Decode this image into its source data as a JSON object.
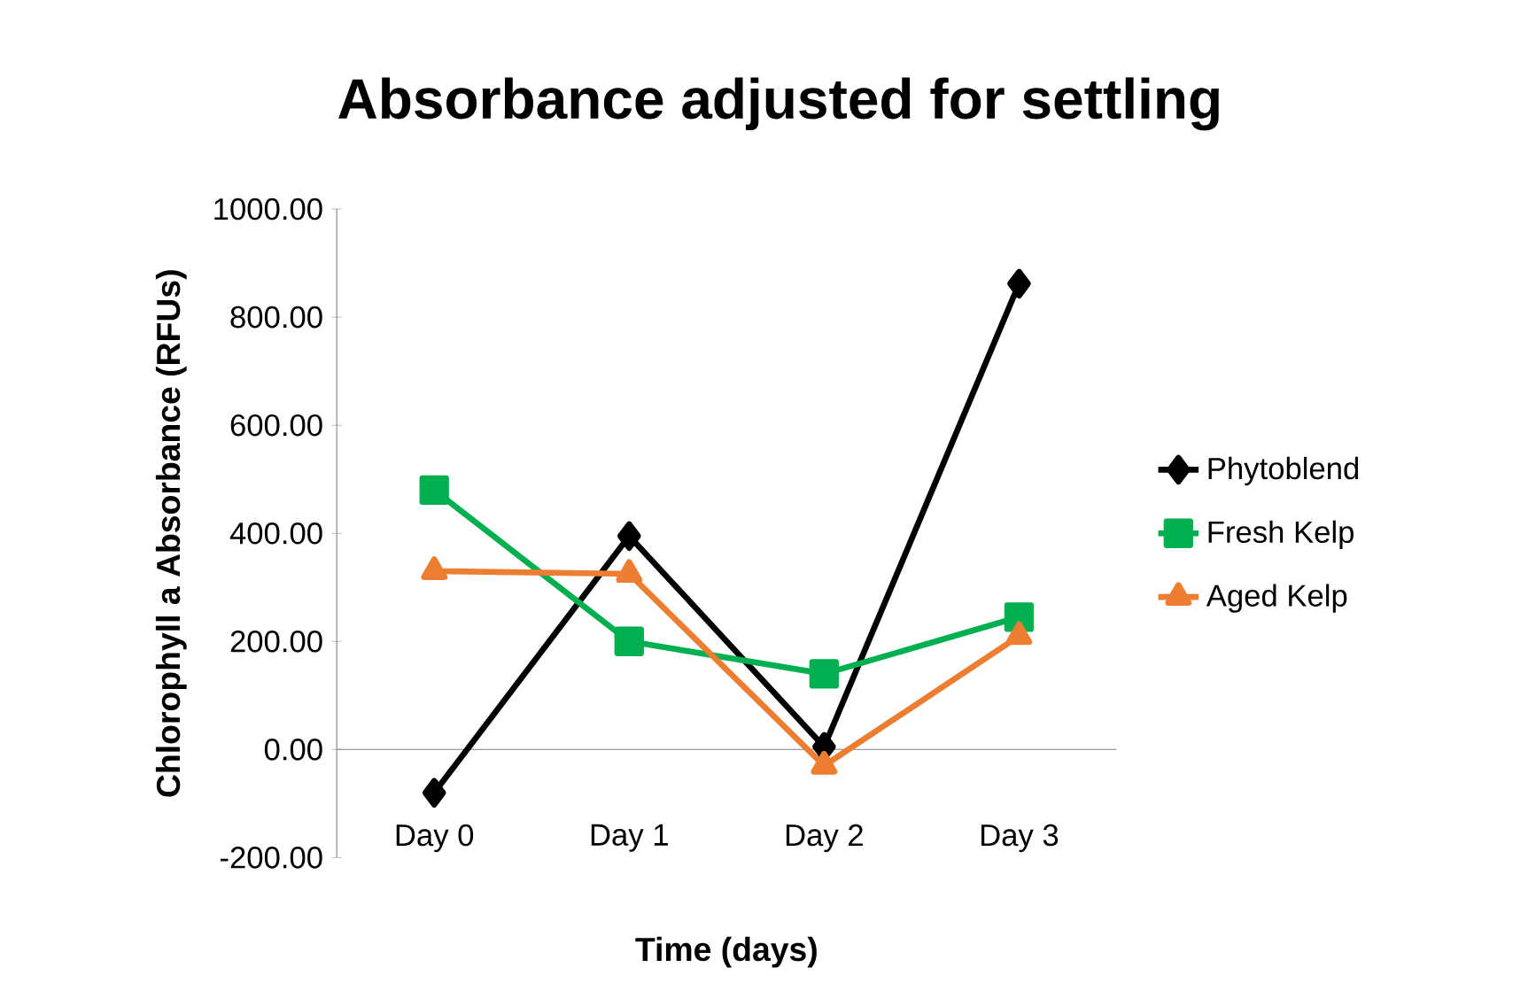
{
  "chart_data": {
    "type": "line",
    "title": "Absorbance adjusted for settling",
    "xlabel": "Time (days)",
    "ylabel": "Chlorophyll a Absorbance (RFUs)",
    "categories": [
      "Day 0",
      "Day 1",
      "Day 2",
      "Day 3"
    ],
    "series": [
      {
        "name": "Phytoblend",
        "color": "#000000",
        "marker": "diamond",
        "values": [
          -80,
          395,
          5,
          862
        ]
      },
      {
        "name": "Fresh Kelp",
        "color": "#00b050",
        "marker": "square",
        "values": [
          480,
          200,
          140,
          245
        ]
      },
      {
        "name": "Aged Kelp",
        "color": "#ed7d31",
        "marker": "triangle",
        "values": [
          330,
          325,
          -30,
          210
        ]
      }
    ],
    "ylim": [
      -200,
      1000
    ],
    "yticks": [
      {
        "value": -200,
        "label": "-200.00"
      },
      {
        "value": 0,
        "label": "0.00"
      },
      {
        "value": 200,
        "label": "200.00"
      },
      {
        "value": 400,
        "label": "400.00"
      },
      {
        "value": 600,
        "label": "600.00"
      },
      {
        "value": 800,
        "label": "800.00"
      },
      {
        "value": 1000,
        "label": "1000.00"
      }
    ],
    "legend": "right",
    "grid": false,
    "line_style": "solid"
  }
}
